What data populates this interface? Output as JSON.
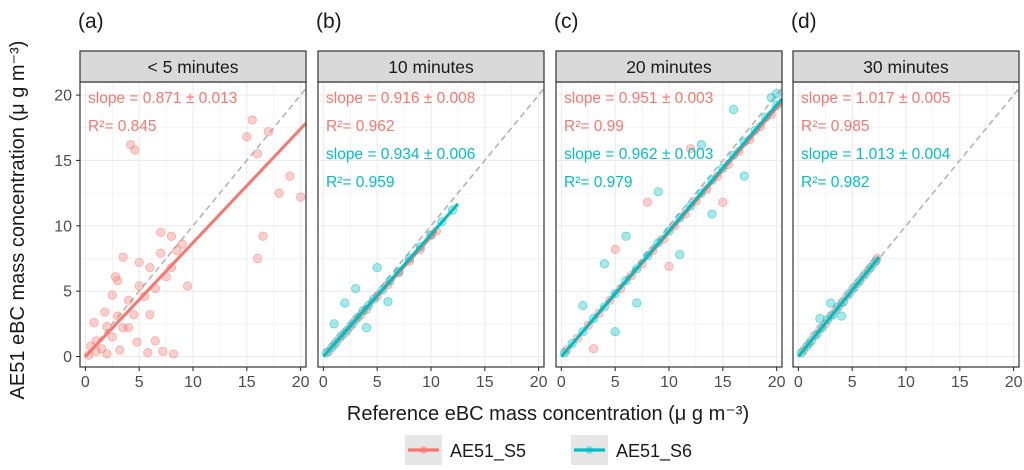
{
  "figure": {
    "ylabel": "AE51 eBC mass concentration (μ g m⁻³)",
    "xlabel": "Reference eBC mass concentration (μ g m⁻³)",
    "legend": [
      {
        "name": "AE51_S5",
        "color": "#f8766d"
      },
      {
        "name": "AE51_S6",
        "color": "#00bfc4"
      }
    ]
  },
  "colors": {
    "s5": "#f8766d",
    "s6": "#00bfc4",
    "panel_bg": "#ffffff",
    "strip_bg": "#d9d9d9",
    "grid": "#ebebeb",
    "identity_line": "#b3b3b3"
  },
  "chart_data": [
    {
      "type": "scatter",
      "panel_label": "(a)",
      "strip_title": "< 5 minutes",
      "xlim": [
        -0.5,
        20.5
      ],
      "ylim": [
        -0.8,
        21
      ],
      "xticks": [
        0,
        5,
        10,
        15,
        20
      ],
      "yticks": [
        0,
        5,
        10,
        15,
        20
      ],
      "identity_line": true,
      "series": [
        {
          "name": "AE51_S5",
          "slope": 0.871,
          "slope_se": 0.013,
          "r2": 0.845,
          "fit_x": [
            0,
            20.5
          ],
          "annotations": [
            "slope = 0.871 ± 0.013",
            "R²= 0.845"
          ],
          "points": [
            [
              0.5,
              0.8
            ],
            [
              1,
              1.2
            ],
            [
              1.5,
              0.6
            ],
            [
              2,
              2.3
            ],
            [
              2.5,
              1.5
            ],
            [
              3,
              3.1
            ],
            [
              3.5,
              2.2
            ],
            [
              4,
              4.3
            ],
            [
              4.5,
              3.2
            ],
            [
              5,
              5.4
            ],
            [
              5.5,
              4.6
            ],
            [
              6,
              6.8
            ],
            [
              6.5,
              5.2
            ],
            [
              7,
              7.9
            ],
            [
              7.5,
              6.1
            ],
            [
              8,
              9.2
            ],
            [
              8.5,
              8.1
            ],
            [
              9,
              8.6
            ],
            [
              4,
              2.2
            ],
            [
              3,
              5.8
            ],
            [
              6,
              3.2
            ],
            [
              2,
              0.2
            ],
            [
              1,
              0.4
            ],
            [
              5,
              7.2
            ],
            [
              7,
              9.5
            ],
            [
              8,
              6.8
            ],
            [
              3.5,
              7.6
            ],
            [
              2.5,
              4.7
            ],
            [
              6.5,
              1.2
            ],
            [
              9.5,
              5.4
            ],
            [
              15,
              16.8
            ],
            [
              16,
              15.5
            ],
            [
              17,
              17.2
            ],
            [
              15.5,
              18.1
            ],
            [
              18,
              12.5
            ],
            [
              16.5,
              9.2
            ],
            [
              16,
              7.5
            ],
            [
              19,
              13.8
            ],
            [
              20,
              12.2
            ],
            [
              4.2,
              16.2
            ],
            [
              4.6,
              15.8
            ],
            [
              0.3,
              0.1
            ],
            [
              0.8,
              2.6
            ],
            [
              1.8,
              3.4
            ],
            [
              4.8,
              1.1
            ],
            [
              5.8,
              0.3
            ],
            [
              7.2,
              0.4
            ],
            [
              8.2,
              0.2
            ],
            [
              3.2,
              0.5
            ],
            [
              2.8,
              6.1
            ]
          ]
        }
      ]
    },
    {
      "type": "scatter",
      "panel_label": "(b)",
      "strip_title": "10 minutes",
      "xlim": [
        -0.5,
        20.5
      ],
      "ylim": [
        -0.8,
        21
      ],
      "xticks": [
        0,
        5,
        10,
        15,
        20
      ],
      "yticks": [
        0,
        5,
        10,
        15,
        20
      ],
      "identity_line": true,
      "series": [
        {
          "name": "AE51_S5",
          "slope": 0.916,
          "slope_se": 0.008,
          "r2": 0.962,
          "fit_x": [
            0,
            10.5
          ],
          "annotations": [
            "slope = 0.916 ± 0.008",
            "R²= 0.962"
          ],
          "points": [
            [
              0.5,
              0.4
            ],
            [
              1,
              0.9
            ],
            [
              1.5,
              1.4
            ],
            [
              2,
              1.8
            ],
            [
              2.5,
              2.3
            ],
            [
              3,
              2.8
            ],
            [
              3.5,
              3.2
            ],
            [
              4,
              3.6
            ],
            [
              5,
              4.6
            ],
            [
              6,
              5.5
            ],
            [
              7,
              6.4
            ],
            [
              8,
              7.3
            ],
            [
              9,
              8.2
            ],
            [
              10,
              9.3
            ],
            [
              10.5,
              9.6
            ]
          ]
        },
        {
          "name": "AE51_S6",
          "slope": 0.934,
          "slope_se": 0.006,
          "r2": 0.959,
          "fit_x": [
            0,
            12.5
          ],
          "annotations": [
            "slope = 0.934 ± 0.006",
            "R²= 0.959"
          ],
          "points": [
            [
              0.3,
              0.3
            ],
            [
              0.8,
              0.7
            ],
            [
              1.2,
              1.1
            ],
            [
              1.7,
              1.6
            ],
            [
              2.2,
              2.0
            ],
            [
              2.7,
              2.5
            ],
            [
              3.2,
              3.0
            ],
            [
              3.7,
              3.5
            ],
            [
              4.2,
              3.9
            ],
            [
              4.7,
              4.4
            ],
            [
              5.5,
              5.1
            ],
            [
              6.2,
              5.8
            ],
            [
              7,
              6.5
            ],
            [
              8,
              7.5
            ],
            [
              9,
              8.4
            ],
            [
              10,
              9.3
            ],
            [
              11,
              10.3
            ],
            [
              12,
              11.2
            ],
            [
              2,
              4.1
            ],
            [
              3,
              5.2
            ],
            [
              4,
              2.2
            ],
            [
              1,
              2.5
            ],
            [
              5,
              6.8
            ],
            [
              6,
              4.2
            ]
          ]
        }
      ]
    },
    {
      "type": "scatter",
      "panel_label": "(c)",
      "strip_title": "20 minutes",
      "xlim": [
        -0.5,
        20.5
      ],
      "ylim": [
        -0.8,
        21
      ],
      "xticks": [
        0,
        5,
        10,
        15,
        20
      ],
      "yticks": [
        0,
        5,
        10,
        15,
        20
      ],
      "identity_line": true,
      "series": [
        {
          "name": "AE51_S5",
          "slope": 0.951,
          "slope_se": 0.003,
          "r2": 0.99,
          "fit_x": [
            0,
            20.5
          ],
          "annotations": [
            "slope = 0.951 ± 0.003",
            "R²= 0.99"
          ],
          "points": [
            [
              0.5,
              0.5
            ],
            [
              1.5,
              1.4
            ],
            [
              2.5,
              2.4
            ],
            [
              3.5,
              3.3
            ],
            [
              4.5,
              4.3
            ],
            [
              5.5,
              5.2
            ],
            [
              6.5,
              6.2
            ],
            [
              7.5,
              7.1
            ],
            [
              8.5,
              8.1
            ],
            [
              9.5,
              9.0
            ],
            [
              10.5,
              10.0
            ],
            [
              11.5,
              10.9
            ],
            [
              12.5,
              11.9
            ],
            [
              13.5,
              12.8
            ],
            [
              14.5,
              13.8
            ],
            [
              15.5,
              14.7
            ],
            [
              16.5,
              15.7
            ],
            [
              17.5,
              16.6
            ],
            [
              18.5,
              17.6
            ],
            [
              19.5,
              18.5
            ],
            [
              5,
              8.2
            ],
            [
              8,
              11.8
            ],
            [
              10,
              6.9
            ],
            [
              12,
              15.9
            ],
            [
              15,
              11.8
            ],
            [
              3,
              0.6
            ]
          ]
        },
        {
          "name": "AE51_S6",
          "slope": 0.962,
          "slope_se": 0.003,
          "r2": 0.979,
          "fit_x": [
            0,
            20.5
          ],
          "annotations": [
            "slope = 0.962 ± 0.003",
            "R²= 0.979"
          ],
          "points": [
            [
              0.3,
              0.3
            ],
            [
              1,
              1.0
            ],
            [
              2,
              1.9
            ],
            [
              3,
              2.9
            ],
            [
              4,
              3.8
            ],
            [
              5,
              4.8
            ],
            [
              6,
              5.8
            ],
            [
              7,
              6.7
            ],
            [
              8,
              7.7
            ],
            [
              9,
              8.7
            ],
            [
              10,
              9.6
            ],
            [
              11,
              10.6
            ],
            [
              12,
              11.5
            ],
            [
              13,
              12.5
            ],
            [
              14,
              13.5
            ],
            [
              15,
              14.4
            ],
            [
              16,
              15.4
            ],
            [
              17,
              16.4
            ],
            [
              18,
              17.3
            ],
            [
              19,
              18.3
            ],
            [
              20,
              19.2
            ],
            [
              20,
              20.1
            ],
            [
              19.5,
              19.8
            ],
            [
              4,
              7.1
            ],
            [
              6,
              9.2
            ],
            [
              7,
              4.1
            ],
            [
              9,
              12.6
            ],
            [
              11,
              7.8
            ],
            [
              13,
              16.2
            ],
            [
              14,
              10.9
            ],
            [
              16,
              18.9
            ],
            [
              17,
              13.8
            ],
            [
              2,
              3.9
            ],
            [
              5,
              1.9
            ]
          ]
        }
      ]
    },
    {
      "type": "scatter",
      "panel_label": "(d)",
      "strip_title": "30 minutes",
      "xlim": [
        -0.5,
        20.5
      ],
      "ylim": [
        -0.8,
        21
      ],
      "xticks": [
        0,
        5,
        10,
        15,
        20
      ],
      "yticks": [
        0,
        5,
        10,
        15,
        20
      ],
      "identity_line": true,
      "series": [
        {
          "name": "AE51_S5",
          "slope": 1.017,
          "slope_se": 0.005,
          "r2": 0.985,
          "fit_x": [
            0,
            7.5
          ],
          "annotations": [
            "slope = 1.017 ± 0.005",
            "R²= 0.985"
          ],
          "points": [
            [
              0.5,
              0.5
            ],
            [
              1,
              1.0
            ],
            [
              1.5,
              1.6
            ],
            [
              2,
              2.1
            ],
            [
              2.5,
              2.5
            ],
            [
              3,
              3.1
            ],
            [
              3.5,
              3.6
            ],
            [
              4,
              4.1
            ],
            [
              4.5,
              4.6
            ],
            [
              5,
              5.1
            ],
            [
              5.5,
              5.6
            ],
            [
              6,
              6.1
            ],
            [
              6.5,
              6.6
            ],
            [
              7,
              7.1
            ],
            [
              7.3,
              7.5
            ]
          ]
        },
        {
          "name": "AE51_S6",
          "slope": 1.013,
          "slope_se": 0.004,
          "r2": 0.982,
          "fit_x": [
            0,
            7.5
          ],
          "annotations": [
            "slope = 1.013 ± 0.004",
            "R²= 0.982"
          ],
          "points": [
            [
              0.3,
              0.3
            ],
            [
              0.8,
              0.8
            ],
            [
              1.2,
              1.2
            ],
            [
              1.7,
              1.7
            ],
            [
              2.2,
              2.2
            ],
            [
              2.7,
              2.8
            ],
            [
              3.2,
              3.2
            ],
            [
              3.7,
              3.8
            ],
            [
              4.2,
              4.2
            ],
            [
              4.7,
              4.8
            ],
            [
              5.2,
              5.3
            ],
            [
              5.7,
              5.8
            ],
            [
              6.2,
              6.3
            ],
            [
              6.7,
              6.8
            ],
            [
              7.2,
              7.3
            ],
            [
              3,
              4.1
            ],
            [
              4,
              3.1
            ],
            [
              2,
              2.9
            ]
          ]
        }
      ]
    }
  ]
}
